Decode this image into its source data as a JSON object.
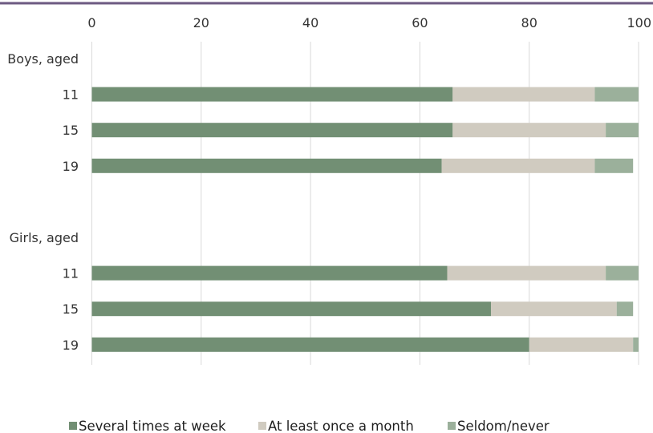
{
  "chart_data": {
    "type": "bar",
    "orientation": "horizontal",
    "stacked": true,
    "xlim": [
      0,
      100
    ],
    "x_ticks": [
      "0",
      "20",
      "40",
      "60",
      "80",
      "100"
    ],
    "x_tick_values": [
      0,
      20,
      40,
      60,
      80,
      100
    ],
    "grid": true,
    "legend_position": "bottom",
    "top_rule_color": "#6c5a82",
    "categories": [
      "Boys, aged",
      "11",
      "15",
      "19",
      "",
      "Girls, aged",
      "11",
      "15",
      "19"
    ],
    "series": [
      {
        "name": "Several times at week",
        "color": "#728f74",
        "values": [
          null,
          66,
          66,
          64,
          null,
          null,
          65,
          73,
          80
        ]
      },
      {
        "name": "At least once a month",
        "color": "#d0cbc0",
        "values": [
          null,
          26,
          28,
          28,
          null,
          null,
          29,
          23,
          19
        ]
      },
      {
        "name": "Seldom/never",
        "color": "#9bb09b",
        "values": [
          null,
          8,
          6,
          7,
          null,
          null,
          6,
          3,
          1
        ]
      }
    ]
  }
}
